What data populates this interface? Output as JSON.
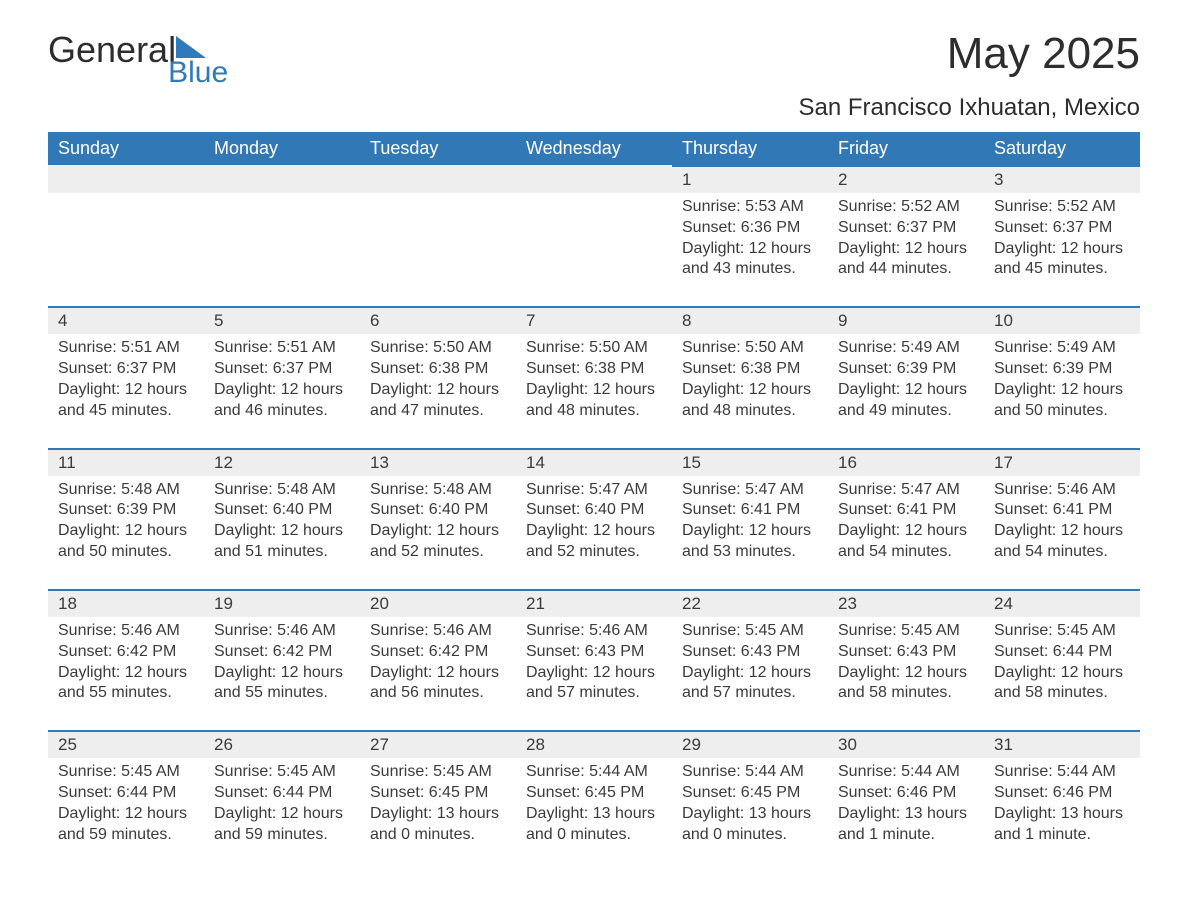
{
  "logo": {
    "word1": "General",
    "word2": "Blue"
  },
  "title": "May 2025",
  "location": "San Francisco Ixhuatan, Mexico",
  "colors": {
    "header_bg": "#3178b7",
    "header_text": "#ffffff",
    "daynum_bg": "#eeeeee",
    "daynum_border": "#3178b7",
    "text": "#3b3b3b",
    "logo_blue": "#2f7ab8"
  },
  "weekdays": [
    "Sunday",
    "Monday",
    "Tuesday",
    "Wednesday",
    "Thursday",
    "Friday",
    "Saturday"
  ],
  "weeks": [
    [
      {
        "empty": true
      },
      {
        "empty": true
      },
      {
        "empty": true
      },
      {
        "empty": true
      },
      {
        "day": "1",
        "sunrise": "Sunrise: 5:53 AM",
        "sunset": "Sunset: 6:36 PM",
        "dl1": "Daylight: 12 hours",
        "dl2": "and 43 minutes."
      },
      {
        "day": "2",
        "sunrise": "Sunrise: 5:52 AM",
        "sunset": "Sunset: 6:37 PM",
        "dl1": "Daylight: 12 hours",
        "dl2": "and 44 minutes."
      },
      {
        "day": "3",
        "sunrise": "Sunrise: 5:52 AM",
        "sunset": "Sunset: 6:37 PM",
        "dl1": "Daylight: 12 hours",
        "dl2": "and 45 minutes."
      }
    ],
    [
      {
        "day": "4",
        "sunrise": "Sunrise: 5:51 AM",
        "sunset": "Sunset: 6:37 PM",
        "dl1": "Daylight: 12 hours",
        "dl2": "and 45 minutes."
      },
      {
        "day": "5",
        "sunrise": "Sunrise: 5:51 AM",
        "sunset": "Sunset: 6:37 PM",
        "dl1": "Daylight: 12 hours",
        "dl2": "and 46 minutes."
      },
      {
        "day": "6",
        "sunrise": "Sunrise: 5:50 AM",
        "sunset": "Sunset: 6:38 PM",
        "dl1": "Daylight: 12 hours",
        "dl2": "and 47 minutes."
      },
      {
        "day": "7",
        "sunrise": "Sunrise: 5:50 AM",
        "sunset": "Sunset: 6:38 PM",
        "dl1": "Daylight: 12 hours",
        "dl2": "and 48 minutes."
      },
      {
        "day": "8",
        "sunrise": "Sunrise: 5:50 AM",
        "sunset": "Sunset: 6:38 PM",
        "dl1": "Daylight: 12 hours",
        "dl2": "and 48 minutes."
      },
      {
        "day": "9",
        "sunrise": "Sunrise: 5:49 AM",
        "sunset": "Sunset: 6:39 PM",
        "dl1": "Daylight: 12 hours",
        "dl2": "and 49 minutes."
      },
      {
        "day": "10",
        "sunrise": "Sunrise: 5:49 AM",
        "sunset": "Sunset: 6:39 PM",
        "dl1": "Daylight: 12 hours",
        "dl2": "and 50 minutes."
      }
    ],
    [
      {
        "day": "11",
        "sunrise": "Sunrise: 5:48 AM",
        "sunset": "Sunset: 6:39 PM",
        "dl1": "Daylight: 12 hours",
        "dl2": "and 50 minutes."
      },
      {
        "day": "12",
        "sunrise": "Sunrise: 5:48 AM",
        "sunset": "Sunset: 6:40 PM",
        "dl1": "Daylight: 12 hours",
        "dl2": "and 51 minutes."
      },
      {
        "day": "13",
        "sunrise": "Sunrise: 5:48 AM",
        "sunset": "Sunset: 6:40 PM",
        "dl1": "Daylight: 12 hours",
        "dl2": "and 52 minutes."
      },
      {
        "day": "14",
        "sunrise": "Sunrise: 5:47 AM",
        "sunset": "Sunset: 6:40 PM",
        "dl1": "Daylight: 12 hours",
        "dl2": "and 52 minutes."
      },
      {
        "day": "15",
        "sunrise": "Sunrise: 5:47 AM",
        "sunset": "Sunset: 6:41 PM",
        "dl1": "Daylight: 12 hours",
        "dl2": "and 53 minutes."
      },
      {
        "day": "16",
        "sunrise": "Sunrise: 5:47 AM",
        "sunset": "Sunset: 6:41 PM",
        "dl1": "Daylight: 12 hours",
        "dl2": "and 54 minutes."
      },
      {
        "day": "17",
        "sunrise": "Sunrise: 5:46 AM",
        "sunset": "Sunset: 6:41 PM",
        "dl1": "Daylight: 12 hours",
        "dl2": "and 54 minutes."
      }
    ],
    [
      {
        "day": "18",
        "sunrise": "Sunrise: 5:46 AM",
        "sunset": "Sunset: 6:42 PM",
        "dl1": "Daylight: 12 hours",
        "dl2": "and 55 minutes."
      },
      {
        "day": "19",
        "sunrise": "Sunrise: 5:46 AM",
        "sunset": "Sunset: 6:42 PM",
        "dl1": "Daylight: 12 hours",
        "dl2": "and 55 minutes."
      },
      {
        "day": "20",
        "sunrise": "Sunrise: 5:46 AM",
        "sunset": "Sunset: 6:42 PM",
        "dl1": "Daylight: 12 hours",
        "dl2": "and 56 minutes."
      },
      {
        "day": "21",
        "sunrise": "Sunrise: 5:46 AM",
        "sunset": "Sunset: 6:43 PM",
        "dl1": "Daylight: 12 hours",
        "dl2": "and 57 minutes."
      },
      {
        "day": "22",
        "sunrise": "Sunrise: 5:45 AM",
        "sunset": "Sunset: 6:43 PM",
        "dl1": "Daylight: 12 hours",
        "dl2": "and 57 minutes."
      },
      {
        "day": "23",
        "sunrise": "Sunrise: 5:45 AM",
        "sunset": "Sunset: 6:43 PM",
        "dl1": "Daylight: 12 hours",
        "dl2": "and 58 minutes."
      },
      {
        "day": "24",
        "sunrise": "Sunrise: 5:45 AM",
        "sunset": "Sunset: 6:44 PM",
        "dl1": "Daylight: 12 hours",
        "dl2": "and 58 minutes."
      }
    ],
    [
      {
        "day": "25",
        "sunrise": "Sunrise: 5:45 AM",
        "sunset": "Sunset: 6:44 PM",
        "dl1": "Daylight: 12 hours",
        "dl2": "and 59 minutes."
      },
      {
        "day": "26",
        "sunrise": "Sunrise: 5:45 AM",
        "sunset": "Sunset: 6:44 PM",
        "dl1": "Daylight: 12 hours",
        "dl2": "and 59 minutes."
      },
      {
        "day": "27",
        "sunrise": "Sunrise: 5:45 AM",
        "sunset": "Sunset: 6:45 PM",
        "dl1": "Daylight: 13 hours",
        "dl2": "and 0 minutes."
      },
      {
        "day": "28",
        "sunrise": "Sunrise: 5:44 AM",
        "sunset": "Sunset: 6:45 PM",
        "dl1": "Daylight: 13 hours",
        "dl2": "and 0 minutes."
      },
      {
        "day": "29",
        "sunrise": "Sunrise: 5:44 AM",
        "sunset": "Sunset: 6:45 PM",
        "dl1": "Daylight: 13 hours",
        "dl2": "and 0 minutes."
      },
      {
        "day": "30",
        "sunrise": "Sunrise: 5:44 AM",
        "sunset": "Sunset: 6:46 PM",
        "dl1": "Daylight: 13 hours",
        "dl2": "and 1 minute."
      },
      {
        "day": "31",
        "sunrise": "Sunrise: 5:44 AM",
        "sunset": "Sunset: 6:46 PM",
        "dl1": "Daylight: 13 hours",
        "dl2": "and 1 minute."
      }
    ]
  ]
}
